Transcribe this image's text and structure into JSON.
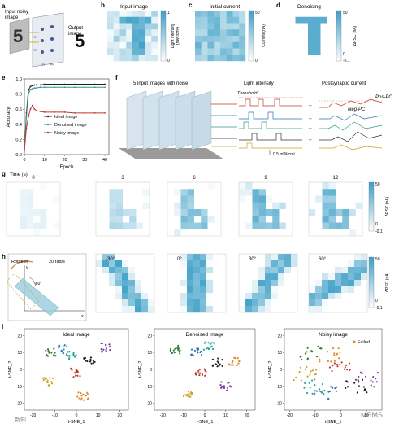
{
  "panel_labels": {
    "a": "a",
    "b": "b",
    "c": "c",
    "d": "d",
    "e": "e",
    "f": "f",
    "g": "g",
    "h": "h",
    "i": "i"
  },
  "panel_a": {
    "input_label_1": "Input noisy",
    "input_label_2": "image",
    "output_label_1": "Output",
    "output_label_2": "image",
    "i_labels": [
      "I₀₁",
      "I₀₂",
      "I₀₃",
      "I₀₄"
    ]
  },
  "panel_b": {
    "title": "Input image",
    "cbar_label_1": "Light intensity",
    "cbar_label_2": "(mW/cm²)",
    "cbar_ticks": [
      "1",
      "0"
    ]
  },
  "panel_c": {
    "title": "Initial current",
    "cbar_label": "Current (nA)",
    "cbar_ticks": [
      "50",
      "0"
    ]
  },
  "panel_d": {
    "title": "Denoising",
    "cbar_label": "ΔPSC (nA)",
    "cbar_ticks": [
      "50",
      "0",
      "-0.1"
    ]
  },
  "panel_f": {
    "title_left": "5 input images with noise",
    "title_mid": "Light intensity",
    "title_right": "Postsynaptic current",
    "threshold": "Threshold",
    "pos_pc": "Pos-PC",
    "neg_pc": "Neg-PC",
    "scale_bar": "0.5 mW/cm²"
  },
  "panel_g": {
    "time_label": "Time (s)",
    "times": [
      "0",
      "3",
      "6",
      "9",
      "12"
    ],
    "cbar_label": "ΔPSC (nA)",
    "cbar_ticks": [
      "50",
      "0",
      "-0.1"
    ]
  },
  "panel_h": {
    "rotation": "Rotation",
    "speed": "20 rad/s",
    "inset_angle": "-60°",
    "axis_y": "y",
    "axis_x": "x",
    "angles": [
      "-30°",
      "0°",
      "30°",
      "60°"
    ],
    "cbar_label": "ΔPSC (nA)",
    "cbar_ticks": [
      "50",
      "0",
      "-0.1"
    ]
  },
  "panel_i": {
    "titles": [
      "Ideal image",
      "Denoised image",
      "Noisy image"
    ],
    "xlabel": "t-SNE_1",
    "ylabel": "t-SNE_2",
    "failed": "Failed",
    "xticks_1": [
      "-20",
      "-10",
      "0",
      "10",
      "20"
    ],
    "xticks_2": [
      "-20",
      "-10",
      "0",
      "10",
      "20"
    ],
    "xticks_3": [
      "-20",
      "-10",
      "0",
      "10"
    ],
    "yticks": [
      "20",
      "10",
      "0",
      "-10",
      "-20"
    ]
  },
  "watermark": {
    "left": "新知",
    "right": "MEMS"
  },
  "colors": {
    "accent": "#3d9fc6",
    "ideal": "#1f1f1f",
    "denoised": "#2e9a8c",
    "noisy": "#c0392b"
  },
  "chart_data": {
    "type": "line",
    "title": "",
    "xlabel": "Epoch",
    "ylabel": "Accuracy",
    "xlim": [
      0,
      42
    ],
    "ylim": [
      0,
      1.0
    ],
    "xticks": [
      0,
      10,
      20,
      30,
      40
    ],
    "yticks": [
      0.0,
      0.2,
      0.4,
      0.6,
      0.8,
      1.0
    ],
    "legend_position": "center-right",
    "series": [
      {
        "name": "Ideal image",
        "color": "#1f1f1f",
        "x": [
          0,
          1,
          2,
          3,
          4,
          5,
          6,
          8,
          10,
          15,
          20,
          25,
          30,
          35,
          40
        ],
        "values": [
          0.05,
          0.55,
          0.85,
          0.9,
          0.91,
          0.92,
          0.92,
          0.92,
          0.93,
          0.93,
          0.93,
          0.93,
          0.93,
          0.93,
          0.93
        ]
      },
      {
        "name": "Denoised image",
        "color": "#2e9a8c",
        "x": [
          0,
          1,
          2,
          3,
          4,
          5,
          6,
          8,
          10,
          15,
          20,
          25,
          30,
          35,
          40
        ],
        "values": [
          0.05,
          0.5,
          0.8,
          0.86,
          0.87,
          0.88,
          0.88,
          0.89,
          0.89,
          0.89,
          0.89,
          0.89,
          0.89,
          0.89,
          0.89
        ]
      },
      {
        "name": "Noisy image",
        "color": "#c0392b",
        "x": [
          0,
          1,
          2,
          3,
          4,
          5,
          6,
          8,
          10,
          15,
          20,
          25,
          30,
          35,
          40
        ],
        "values": [
          0.05,
          0.35,
          0.5,
          0.6,
          0.65,
          0.6,
          0.58,
          0.57,
          0.56,
          0.56,
          0.56,
          0.55,
          0.55,
          0.55,
          0.55
        ]
      }
    ]
  }
}
